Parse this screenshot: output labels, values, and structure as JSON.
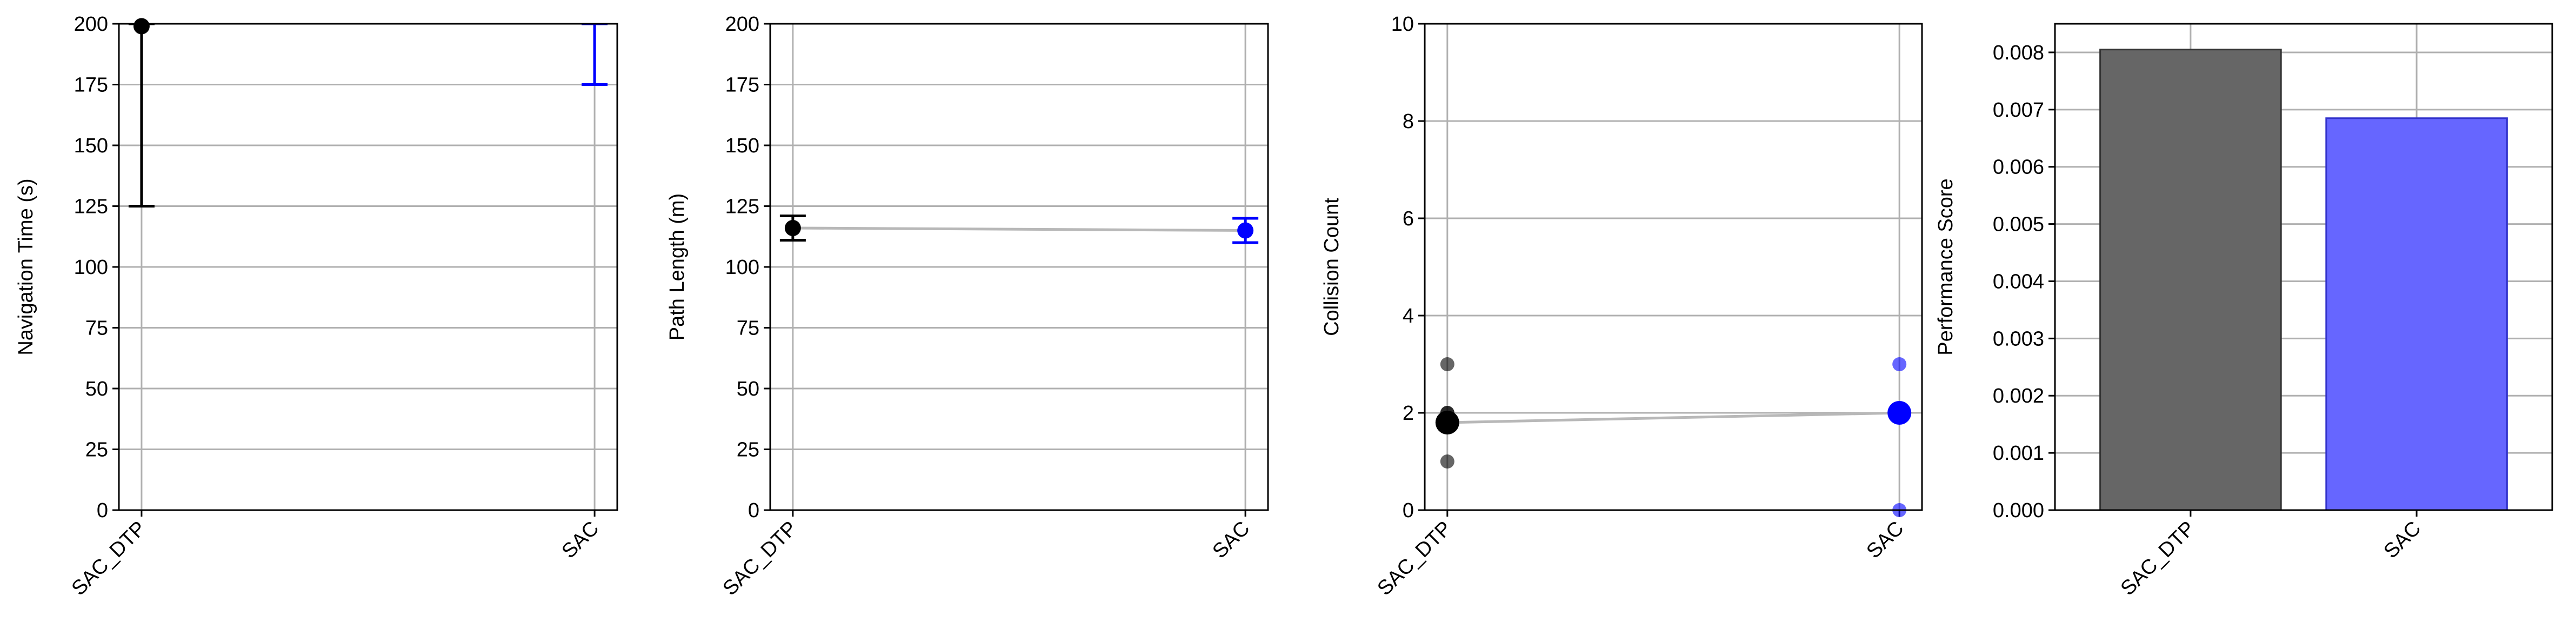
{
  "colors": {
    "sac_dtp": "#000000",
    "sac": "#0000ff",
    "sac_dtp_bar": "#666666",
    "sac_bar": "#6666ff",
    "grid": "#b0b0b0",
    "connector": "#b8b8b8"
  },
  "chart_data": [
    {
      "type": "errorbar",
      "categories": [
        "SAC_DTP",
        "SAC"
      ],
      "ylabel": "Navigation Time (s)",
      "ylim": [
        0,
        200
      ],
      "yticks": [
        "0",
        "25",
        "50",
        "75",
        "100",
        "125",
        "150",
        "175",
        "200"
      ],
      "grid": true,
      "series": [
        {
          "category": "SAC_DTP",
          "mean": 199,
          "error_low": 125,
          "error_high": 200,
          "color": "#000000"
        },
        {
          "category": "SAC",
          "mean": null,
          "error_low": 175,
          "error_high": 200,
          "color": "#0000ff"
        }
      ]
    },
    {
      "type": "errorbar",
      "categories": [
        "SAC_DTP",
        "SAC"
      ],
      "ylabel": "Path Length (m)",
      "ylim": [
        0,
        200
      ],
      "yticks": [
        "0",
        "25",
        "50",
        "75",
        "100",
        "125",
        "150",
        "175",
        "200"
      ],
      "grid": true,
      "connect_means": true,
      "series": [
        {
          "category": "SAC_DTP",
          "mean": 116,
          "error_low": 111,
          "error_high": 121,
          "color": "#000000"
        },
        {
          "category": "SAC",
          "mean": 115,
          "error_low": 110,
          "error_high": 120,
          "color": "#0000ff"
        }
      ]
    },
    {
      "type": "scatter",
      "categories": [
        "SAC_DTP",
        "SAC"
      ],
      "ylabel": "Collision Count",
      "ylim": [
        0,
        10
      ],
      "yticks": [
        "0",
        "2",
        "4",
        "6",
        "8",
        "10"
      ],
      "grid": true,
      "connect_means": true,
      "series": [
        {
          "category": "SAC_DTP",
          "points": [
            1,
            2,
            3,
            2
          ],
          "mean": 1.8,
          "color": "#000000"
        },
        {
          "category": "SAC",
          "points": [
            0,
            2,
            3
          ],
          "mean": 2,
          "color": "#0000ff"
        }
      ]
    },
    {
      "type": "bar",
      "categories": [
        "SAC_DTP",
        "SAC"
      ],
      "values": [
        0.00805,
        0.00685
      ],
      "ylabel": "Performance Score",
      "ylim": [
        0,
        0.0085
      ],
      "yticks": [
        "0.000",
        "0.001",
        "0.002",
        "0.003",
        "0.004",
        "0.005",
        "0.006",
        "0.007",
        "0.008"
      ],
      "grid": true,
      "colors": [
        "#666666",
        "#6666ff"
      ]
    }
  ]
}
